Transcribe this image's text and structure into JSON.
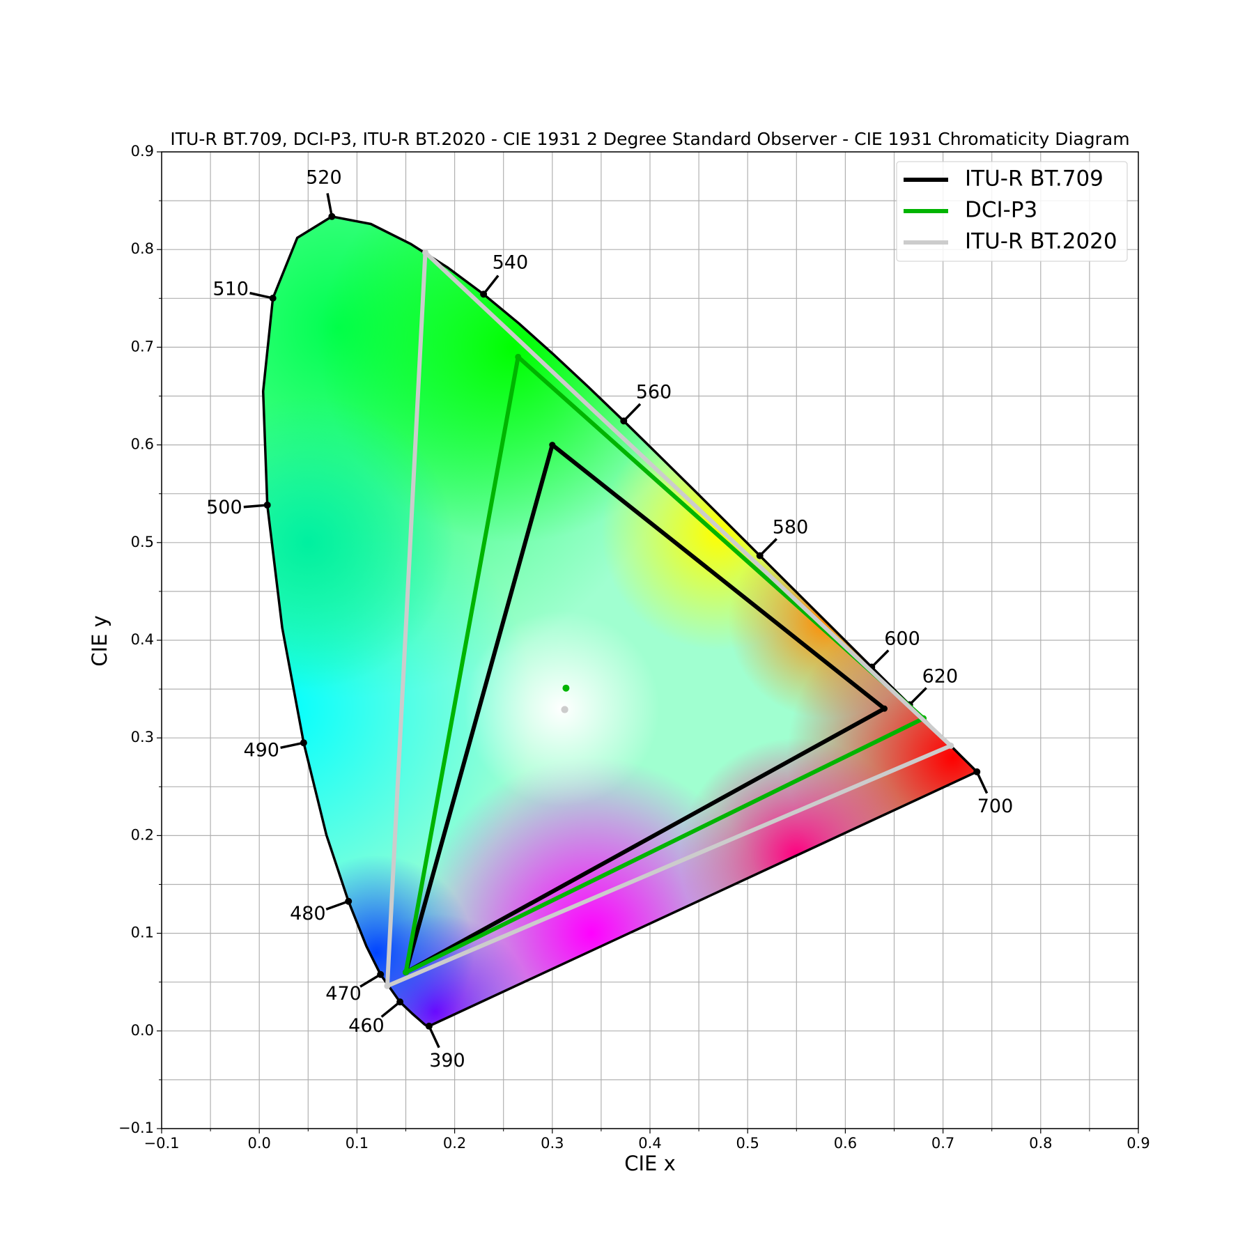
{
  "chart_data": {
    "type": "chromaticity",
    "title": "ITU-R BT.709, DCI-P3, ITU-R BT.2020 - CIE 1931 2 Degree Standard Observer - CIE 1931 Chromaticity Diagram",
    "xlabel": "CIE x",
    "ylabel": "CIE y",
    "xlim": [
      -0.1,
      0.9
    ],
    "ylim": [
      -0.1,
      0.9
    ],
    "xticks": [
      {
        "value": -0.1,
        "label": "−0.1"
      },
      {
        "value": 0,
        "label": "0.0"
      },
      0.1,
      0.2,
      0.3,
      0.4,
      0.5,
      0.6,
      0.7,
      0.8,
      0.9
    ],
    "yticks": [
      {
        "value": -0.1,
        "label": "−0.1"
      },
      {
        "value": 0,
        "label": "0.0"
      },
      0.1,
      0.2,
      0.3,
      0.4,
      0.5,
      0.6,
      0.7,
      0.8,
      0.9
    ],
    "xminorticks": [
      -0.05,
      0.05,
      0.15,
      0.25,
      0.35,
      0.45,
      0.55,
      0.65,
      0.75,
      0.85
    ],
    "yminorticks": [
      -0.05,
      0.05,
      0.15,
      0.25,
      0.35,
      0.45,
      0.55,
      0.65,
      0.75,
      0.85
    ],
    "grid": true,
    "legend": "upper right",
    "spectral_locus": {
      "labels": [
        390,
        null,
        null,
        null,
        null,
        null,
        null,
        460,
        470,
        null,
        480,
        null,
        490,
        null,
        500,
        null,
        510,
        null,
        520,
        null,
        null,
        null,
        540,
        null,
        null,
        null,
        560,
        null,
        null,
        null,
        580,
        null,
        null,
        null,
        600,
        null,
        620,
        null,
        null,
        null,
        null,
        null,
        700
      ],
      "x": [
        0.1738,
        0.1733,
        0.1726,
        0.1714,
        0.1689,
        0.1644,
        0.1566,
        0.144,
        0.1241,
        0.1096,
        0.0913,
        0.0687,
        0.0454,
        0.0235,
        0.0082,
        0.0039,
        0.0139,
        0.0389,
        0.0743,
        0.1142,
        0.1547,
        0.1929,
        0.2296,
        0.2658,
        0.3016,
        0.3373,
        0.3731,
        0.4087,
        0.4441,
        0.4788,
        0.5125,
        0.5448,
        0.5752,
        0.6029,
        0.627,
        0.6482,
        0.6658,
        0.6915,
        0.7079,
        0.719,
        0.726,
        0.7334,
        0.7347
      ],
      "y": [
        0.0049,
        0.0048,
        0.0048,
        0.0051,
        0.0069,
        0.0109,
        0.0177,
        0.0297,
        0.0578,
        0.0868,
        0.1327,
        0.2007,
        0.295,
        0.4127,
        0.5384,
        0.6548,
        0.7502,
        0.812,
        0.8338,
        0.8262,
        0.8059,
        0.7816,
        0.7543,
        0.7243,
        0.6923,
        0.6589,
        0.6245,
        0.5896,
        0.5547,
        0.5202,
        0.4866,
        0.4544,
        0.4242,
        0.3965,
        0.3725,
        0.3514,
        0.334,
        0.3083,
        0.292,
        0.2809,
        0.274,
        0.2666,
        0.2653
      ]
    },
    "series": [
      {
        "name": "ITU-R BT.709",
        "color": "#000000",
        "x": [
          0.64,
          0.3,
          0.15
        ],
        "y": [
          0.33,
          0.6,
          0.06
        ],
        "whitepoint_x": 0.3127,
        "whitepoint_y": 0.329,
        "whitepoint_color": "#aaaaaa"
      },
      {
        "name": "DCI-P3",
        "color": "#00b400",
        "x": [
          0.68,
          0.265,
          0.15
        ],
        "y": [
          0.32,
          0.69,
          0.06
        ],
        "whitepoint_x": 0.314,
        "whitepoint_y": 0.351,
        "whitepoint_color": "#00b400"
      },
      {
        "name": "ITU-R BT.2020",
        "color": "#cccccc",
        "x": [
          0.708,
          0.17,
          0.131
        ],
        "y": [
          0.292,
          0.797,
          0.046
        ],
        "whitepoint_x": 0.3127,
        "whitepoint_y": 0.329,
        "whitepoint_color": "#cccccc"
      }
    ]
  }
}
